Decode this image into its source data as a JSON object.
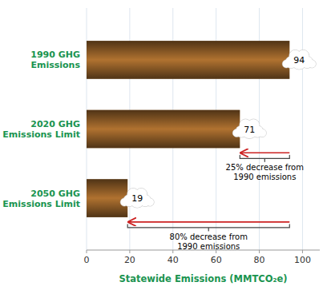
{
  "chart_data": {
    "type": "bar",
    "orientation": "horizontal",
    "categories": [
      "1990 GHG\nEmissions",
      "2020 GHG\nEmissions Limit",
      "2050 GHG\nEmissions Limit"
    ],
    "values": [
      94,
      71,
      19
    ],
    "color": "#b07230",
    "xlim": [
      0,
      108
    ],
    "xticks": [
      0,
      20,
      40,
      60,
      80,
      100
    ],
    "xlabel": "Statewide Emissions (MMTCO₂e)",
    "grid": true,
    "data_labels": true,
    "annotations": [
      {
        "text": "25% decrease from\n1990 emissions",
        "color": "#cc2222"
      },
      {
        "text": "80% decrease from\n1990 emissions",
        "color": "#cc2222"
      }
    ]
  }
}
